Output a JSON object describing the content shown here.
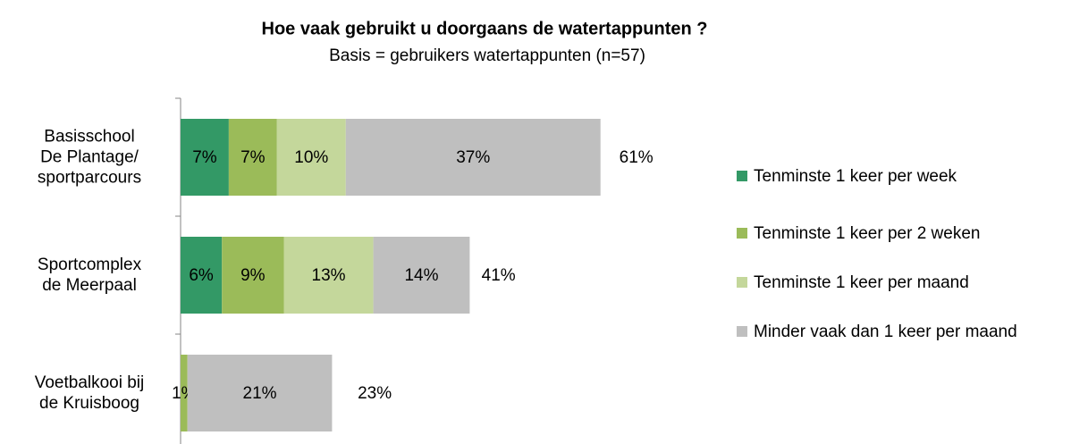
{
  "chart_data": {
    "type": "stacked-bar-horizontal",
    "title": "Hoe vaak gebruikt u doorgaans de watertappunten ?",
    "subtitle": "Basis = gebruikers watertappunten (n=57)",
    "categories": [
      "Basisschool\nDe Plantage/\nsportparcours",
      "Sportcomplex\nde Meerpaal",
      "Voetbalkooi bij\nde Kruisboog"
    ],
    "series": [
      {
        "name": "Tenminste 1 keer per week",
        "color": "#339966",
        "values": [
          7,
          6,
          null
        ],
        "value_labels": [
          "7%",
          "6%",
          null
        ]
      },
      {
        "name": "Tenminste 1 keer per 2 weken",
        "color": "#9bbb59",
        "values": [
          7,
          9,
          1
        ],
        "value_labels": [
          "7%",
          "9%",
          "1%"
        ]
      },
      {
        "name": "Tenminste 1 keer per maand",
        "color": "#c4d79b",
        "values": [
          10,
          13,
          null
        ],
        "value_labels": [
          "10%",
          "13%",
          null
        ]
      },
      {
        "name": "Minder vaak dan 1 keer per maand",
        "color": "#bfbfbf",
        "values": [
          37,
          14,
          21
        ],
        "value_labels": [
          "37%",
          "14%",
          "21%"
        ]
      }
    ],
    "totals": [
      61,
      41,
      23
    ],
    "total_labels": [
      "61%",
      "41%",
      "23%"
    ],
    "legend": "right"
  }
}
